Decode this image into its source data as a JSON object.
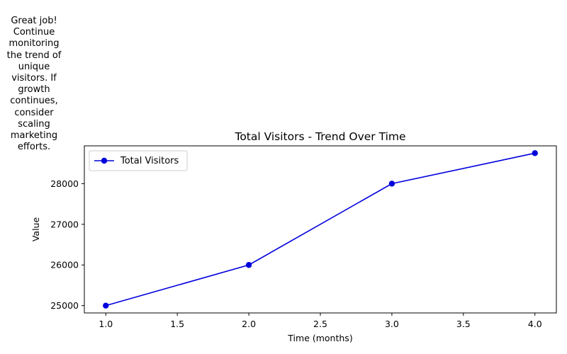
{
  "advice_text": "Great job! Continue monitoring the trend of unique visitors. If growth continues, consider scaling marketing efforts.",
  "chart_data": {
    "type": "line",
    "title": "Total Visitors - Trend Over Time",
    "xlabel": "Time (months)",
    "ylabel": "Value",
    "x": [
      1.0,
      2.0,
      3.0,
      4.0
    ],
    "series": [
      {
        "name": "Total Visitors",
        "values": [
          25000,
          26000,
          28000,
          28750
        ],
        "color": "#0000dd",
        "marker": "circle"
      }
    ],
    "xlim": [
      0.85,
      4.15
    ],
    "ylim": [
      24820,
      28930
    ],
    "xticks": [
      1.0,
      1.5,
      2.0,
      2.5,
      3.0,
      3.5,
      4.0
    ],
    "xtick_labels": [
      "1.0",
      "1.5",
      "2.0",
      "2.5",
      "3.0",
      "3.5",
      "4.0"
    ],
    "yticks": [
      25000,
      26000,
      27000,
      28000
    ],
    "ytick_labels": [
      "25000",
      "26000",
      "27000",
      "28000"
    ],
    "grid": false,
    "legend_position": "top-left"
  }
}
